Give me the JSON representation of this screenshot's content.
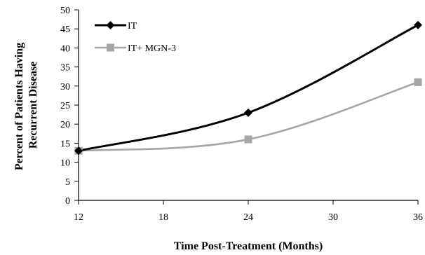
{
  "chart_data": {
    "type": "line",
    "title": "",
    "xlabel": "Time Post-Treatment (Months)",
    "ylabel": [
      "Percent of Patients Having",
      "Recurrent Disease"
    ],
    "x": [
      12,
      24,
      36
    ],
    "xticks": [
      12,
      18,
      24,
      30,
      36
    ],
    "yticks": [
      0,
      5,
      10,
      15,
      20,
      25,
      30,
      35,
      40,
      45,
      50
    ],
    "xlim": [
      12,
      36
    ],
    "ylim": [
      0,
      50
    ],
    "grid": false,
    "legend_position": "top-left",
    "series": [
      {
        "name": "IT",
        "values": [
          13,
          23,
          46
        ],
        "color": "#000000",
        "marker": "diamond"
      },
      {
        "name": "IT+ MGN-3",
        "values": [
          13,
          16,
          31
        ],
        "color": "#a6a6a6",
        "marker": "square"
      }
    ]
  }
}
